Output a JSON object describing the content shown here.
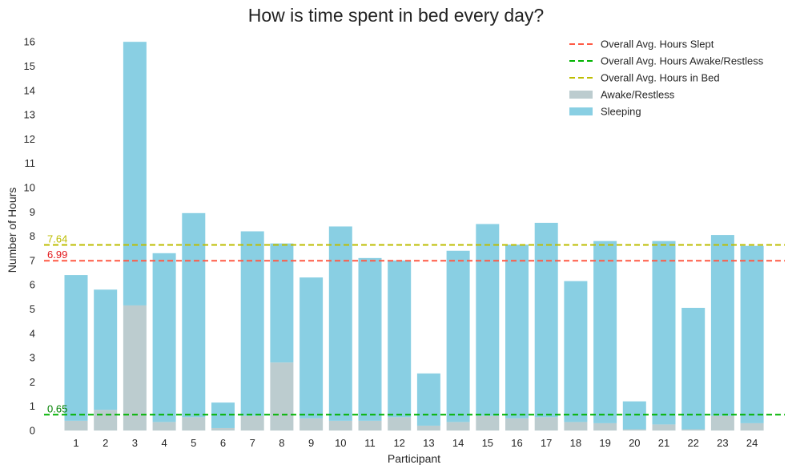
{
  "chart_data": {
    "type": "bar",
    "stacked": true,
    "title": "How is time spent in bed every day?",
    "xlabel": "Participant",
    "ylabel": "Number of Hours",
    "ylim": [
      0,
      16.6
    ],
    "yticks": [
      0,
      1,
      2,
      3,
      4,
      5,
      6,
      7,
      8,
      9,
      10,
      11,
      12,
      13,
      14,
      15,
      16
    ],
    "categories": [
      "1",
      "2",
      "3",
      "4",
      "5",
      "6",
      "7",
      "8",
      "9",
      "10",
      "11",
      "12",
      "13",
      "14",
      "15",
      "16",
      "17",
      "18",
      "19",
      "20",
      "21",
      "22",
      "23",
      "24"
    ],
    "series": [
      {
        "name": "Awake/Restless",
        "color": "#bccccf",
        "values": [
          0.4,
          0.85,
          5.15,
          0.35,
          0.55,
          0.1,
          0.6,
          2.8,
          0.5,
          0.4,
          0.4,
          0.55,
          0.2,
          0.35,
          0.6,
          0.5,
          0.55,
          0.35,
          0.3,
          0.05,
          0.25,
          0.05,
          0.6,
          0.3
        ]
      },
      {
        "name": "Sleeping",
        "color": "#89cfe3",
        "values": [
          6.0,
          4.95,
          10.85,
          6.95,
          8.4,
          1.05,
          7.6,
          4.9,
          5.8,
          8.0,
          6.7,
          6.45,
          2.15,
          7.05,
          7.9,
          7.15,
          8.0,
          5.8,
          7.5,
          1.15,
          7.55,
          5.0,
          7.45,
          7.3
        ]
      }
    ],
    "reference_lines": [
      {
        "name": "Overall Avg. Hours Slept",
        "value": 6.99,
        "label": "6.99",
        "color": "#ff5a45",
        "label_color": "#e31a1c"
      },
      {
        "name": "Overall Avg. Hours Awake/Restless",
        "value": 0.65,
        "label": "0.65",
        "color": "#00b300",
        "label_color": "#008000"
      },
      {
        "name": "Overall Avg. Hours in Bed",
        "value": 7.64,
        "label": "7.64",
        "color": "#bdbd00",
        "label_color": "#bdbd00"
      }
    ],
    "legend": {
      "placement": "top-right",
      "entries": [
        {
          "label": "Overall Avg. Hours Slept",
          "kind": "line",
          "color": "#ff5a45"
        },
        {
          "label": "Overall Avg. Hours Awake/Restless",
          "kind": "line",
          "color": "#00b300"
        },
        {
          "label": "Overall Avg. Hours in Bed",
          "kind": "line",
          "color": "#bdbd00"
        },
        {
          "label": "Awake/Restless",
          "kind": "patch",
          "color": "#bccccf"
        },
        {
          "label": "Sleeping",
          "kind": "patch",
          "color": "#89cfe3"
        }
      ]
    },
    "grid": false
  }
}
